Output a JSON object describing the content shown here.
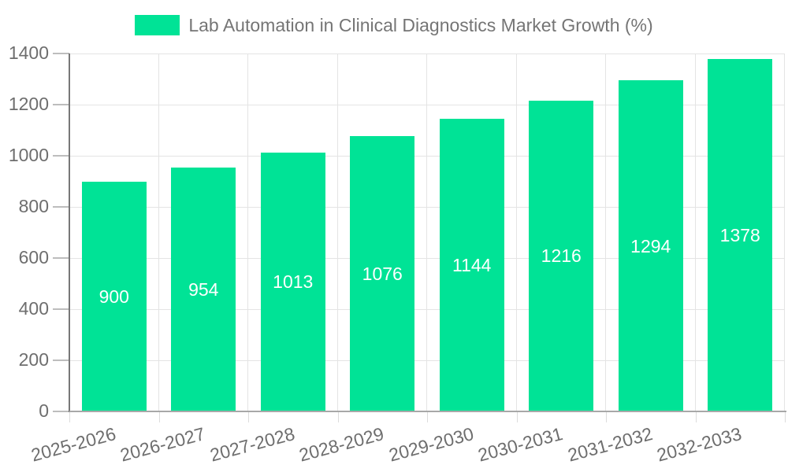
{
  "legend": {
    "label": "Lab Automation in Clinical Diagnostics Market Growth (%)"
  },
  "chart_data": {
    "type": "bar",
    "title": "Lab Automation in Clinical Diagnostics Market Growth (%)",
    "categories": [
      "2025-2026",
      "2026-2027",
      "2027-2028",
      "2028-2029",
      "2029-2030",
      "2030-2031",
      "2031-2032",
      "2032-2033"
    ],
    "values": [
      900,
      954,
      1013,
      1076,
      1144,
      1216,
      1294,
      1378
    ],
    "xlabel": "",
    "ylabel": "",
    "ylim": [
      0,
      1400
    ],
    "y_tick_step": 200,
    "y_tick_labels": [
      "0",
      "200",
      "400",
      "600",
      "800",
      "1000",
      "1200",
      "1400"
    ],
    "grid": true,
    "legend_position": "top",
    "bar_color": "#00E396",
    "value_label_color": "#ffffff",
    "axis_label_color": "#6e6e6e",
    "legend_text_color": "#757575",
    "gridline_color": "#e4e4e4"
  }
}
